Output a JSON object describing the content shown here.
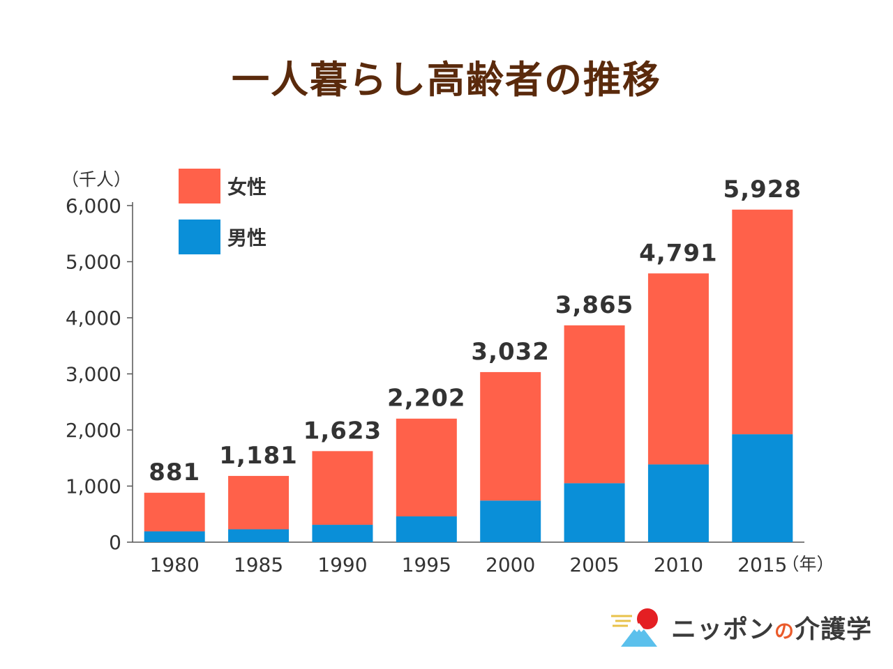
{
  "title": "一人暮らし高齢者の推移",
  "brand": {
    "name_pre": "ニッポン",
    "name_no": "の",
    "name_post": "介護学"
  },
  "chart_data": {
    "type": "bar",
    "stacked": true,
    "y_unit": "（千人）",
    "x_unit": "（年）",
    "categories": [
      "1980",
      "1985",
      "1990",
      "1995",
      "2000",
      "2005",
      "2010",
      "2015"
    ],
    "totals": [
      881,
      1181,
      1623,
      2202,
      3032,
      3865,
      4791,
      5928
    ],
    "total_labels": [
      "881",
      "1,181",
      "1,623",
      "2,202",
      "3,032",
      "3,865",
      "4,791",
      "5,928"
    ],
    "series": [
      {
        "name": "男性",
        "color": "#0a8fd8",
        "values": [
          193,
          230,
          310,
          460,
          742,
          1051,
          1386,
          1924
        ]
      },
      {
        "name": "女性",
        "color": "#ff614a",
        "values": [
          688,
          951,
          1313,
          1742,
          2290,
          2814,
          3405,
          4004
        ]
      }
    ],
    "legend": [
      {
        "name": "女性",
        "color": "#ff614a"
      },
      {
        "name": "男性",
        "color": "#0a8fd8"
      }
    ],
    "ylim": [
      0,
      6000
    ],
    "yticks": [
      0,
      1000,
      2000,
      3000,
      4000,
      5000,
      6000
    ],
    "ytick_labels": [
      "0",
      "1,000",
      "2,000",
      "3,000",
      "4,000",
      "5,000",
      "6,000"
    ],
    "legend_position": "top-left"
  }
}
